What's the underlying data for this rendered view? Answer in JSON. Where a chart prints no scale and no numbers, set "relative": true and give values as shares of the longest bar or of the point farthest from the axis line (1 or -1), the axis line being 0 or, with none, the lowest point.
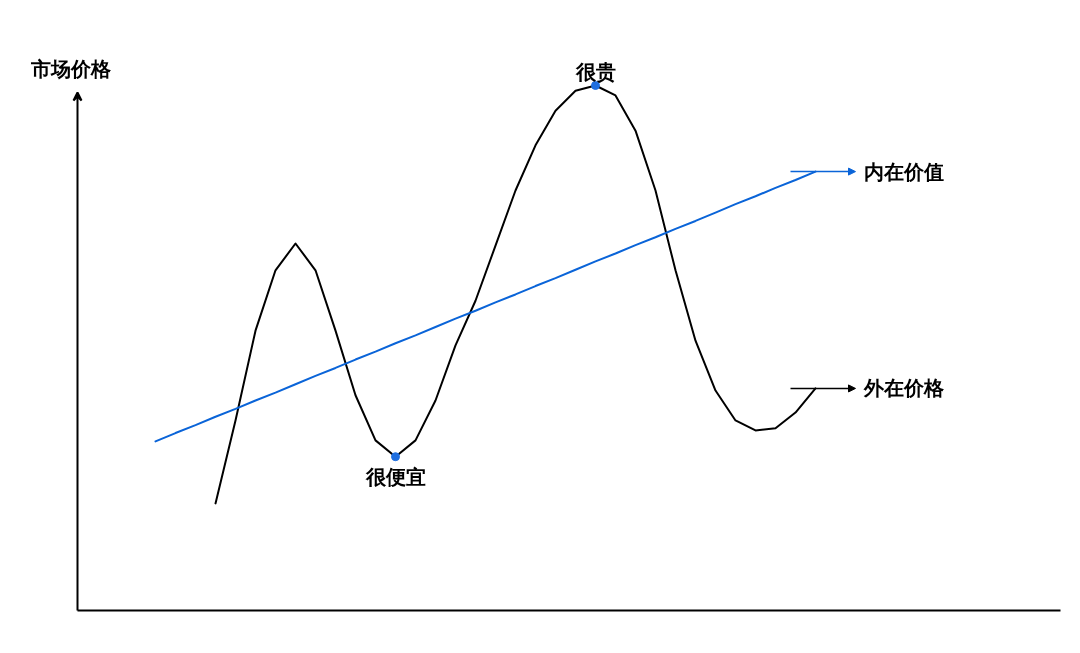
{
  "chart_data": {
    "type": "line",
    "relative": true,
    "ylabel": "市场价格",
    "legend": "right",
    "categories": [
      null,
      null,
      null,
      null,
      null,
      null,
      null,
      null,
      null,
      null,
      null,
      null,
      null,
      null,
      null,
      null,
      null,
      null,
      null,
      null,
      null,
      null,
      null,
      null,
      null,
      null,
      null,
      null,
      null,
      null,
      null,
      null,
      null,
      null
    ],
    "series": [
      {
        "name": "外在价格",
        "color": "#000000",
        "values": [
          null,
          null,
          null,
          0.204,
          0.362,
          0.533,
          0.648,
          0.699,
          0.648,
          0.533,
          0.41,
          0.324,
          0.293,
          0.324,
          0.4,
          0.505,
          0.59,
          0.695,
          0.8,
          0.886,
          0.952,
          0.99,
          1,
          0.981,
          0.914,
          0.8,
          0.648,
          0.514,
          0.419,
          0.362,
          0.343,
          0.347,
          0.377,
          0.423
        ]
      },
      {
        "name": "内在价值",
        "color": "#0a64d8",
        "values": [
          0.322,
          0.338,
          0.353,
          0.369,
          0.384,
          0.4,
          0.415,
          0.431,
          0.447,
          0.462,
          0.478,
          0.493,
          0.509,
          0.524,
          0.54,
          0.556,
          0.571,
          0.587,
          0.602,
          0.618,
          0.633,
          0.649,
          0.665,
          0.68,
          0.696,
          0.711,
          0.727,
          0.742,
          0.758,
          0.774,
          0.789,
          0.805,
          0.82,
          0.836
        ]
      }
    ],
    "annotations": [
      {
        "text": "很贵",
        "y": 1
      },
      {
        "text": "很便宜",
        "y": 0.293
      }
    ]
  }
}
